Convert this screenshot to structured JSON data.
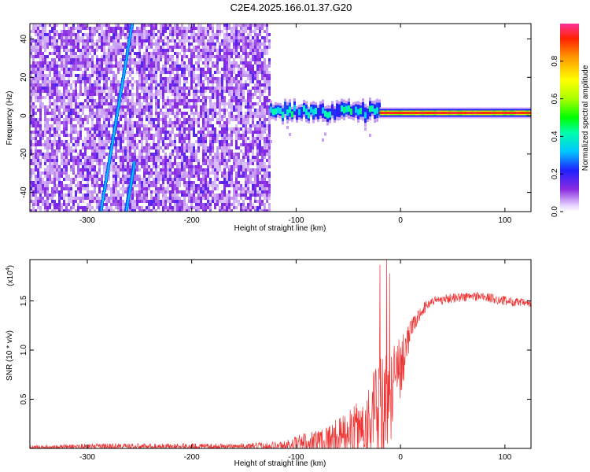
{
  "figure_title": "C2E4.2025.166.01.37.G20",
  "chart_data": [
    {
      "type": "heatmap",
      "xlabel": "Height of straight line (km)",
      "ylabel": "Frequency (Hz)",
      "xlim": [
        -355,
        125
      ],
      "ylim": [
        -50,
        48
      ],
      "xticks": [
        -300,
        -200,
        -100,
        0,
        100
      ],
      "yticks": [
        -40,
        -20,
        0,
        20,
        40
      ],
      "colorbar": {
        "label": "Normalized spectral amplitude",
        "range": [
          0,
          1
        ],
        "ticks": [
          "0.0",
          "0.2",
          "0.4",
          "0.6",
          "0.8"
        ],
        "tick_values": [
          0,
          0.2,
          0.4,
          0.6,
          0.8
        ]
      },
      "features": [
        {
          "kind": "noise-region",
          "x_range": [
            -355,
            -125
          ],
          "level": 0.08
        },
        {
          "kind": "chirp-line",
          "x": [
            -287,
            -257
          ],
          "y": [
            -50,
            48
          ],
          "level": 0.2
        },
        {
          "kind": "chirp-line",
          "x": [
            -263,
            -255
          ],
          "y": [
            -50,
            -25
          ],
          "level": 0.2
        },
        {
          "kind": "band",
          "x_range": [
            -125,
            -20
          ],
          "y_center": 2,
          "level": 0.35
        },
        {
          "kind": "band",
          "x_range": [
            -20,
            125
          ],
          "y_center": 1.5,
          "level": 0.95
        }
      ]
    },
    {
      "type": "line",
      "xlabel": "Height of straight line (km)",
      "ylabel": "SNR (10 * v/v)",
      "y_scale_label": "(x10",
      "y_scale_exp": "4",
      "xlim": [
        -355,
        125
      ],
      "ylim": [
        0,
        1.92
      ],
      "xticks": [
        -300,
        -200,
        -100,
        0,
        100
      ],
      "yticks": [
        "0.5",
        "1.0",
        "1.5"
      ],
      "ytick_values": [
        0.5,
        1.0,
        1.5
      ],
      "color": "#ee3333",
      "envelope": {
        "x": [
          -355,
          -300,
          -250,
          -200,
          -150,
          -110,
          -100,
          -80,
          -60,
          -40,
          -30,
          -20,
          -15,
          -10,
          0,
          10,
          20,
          30,
          50,
          75,
          100,
          125
        ],
        "base": [
          0.01,
          0.02,
          0.02,
          0.02,
          0.02,
          0.03,
          0.05,
          0.08,
          0.12,
          0.18,
          0.3,
          0.35,
          0.35,
          0.5,
          0.85,
          1.2,
          1.4,
          1.5,
          1.53,
          1.55,
          1.5,
          1.47
        ],
        "spread": [
          0.02,
          0.03,
          0.03,
          0.03,
          0.03,
          0.05,
          0.08,
          0.12,
          0.18,
          0.3,
          0.4,
          0.6,
          0.7,
          0.5,
          0.35,
          0.1,
          0.06,
          0.05,
          0.05,
          0.05,
          0.05,
          0.04
        ]
      }
    }
  ]
}
